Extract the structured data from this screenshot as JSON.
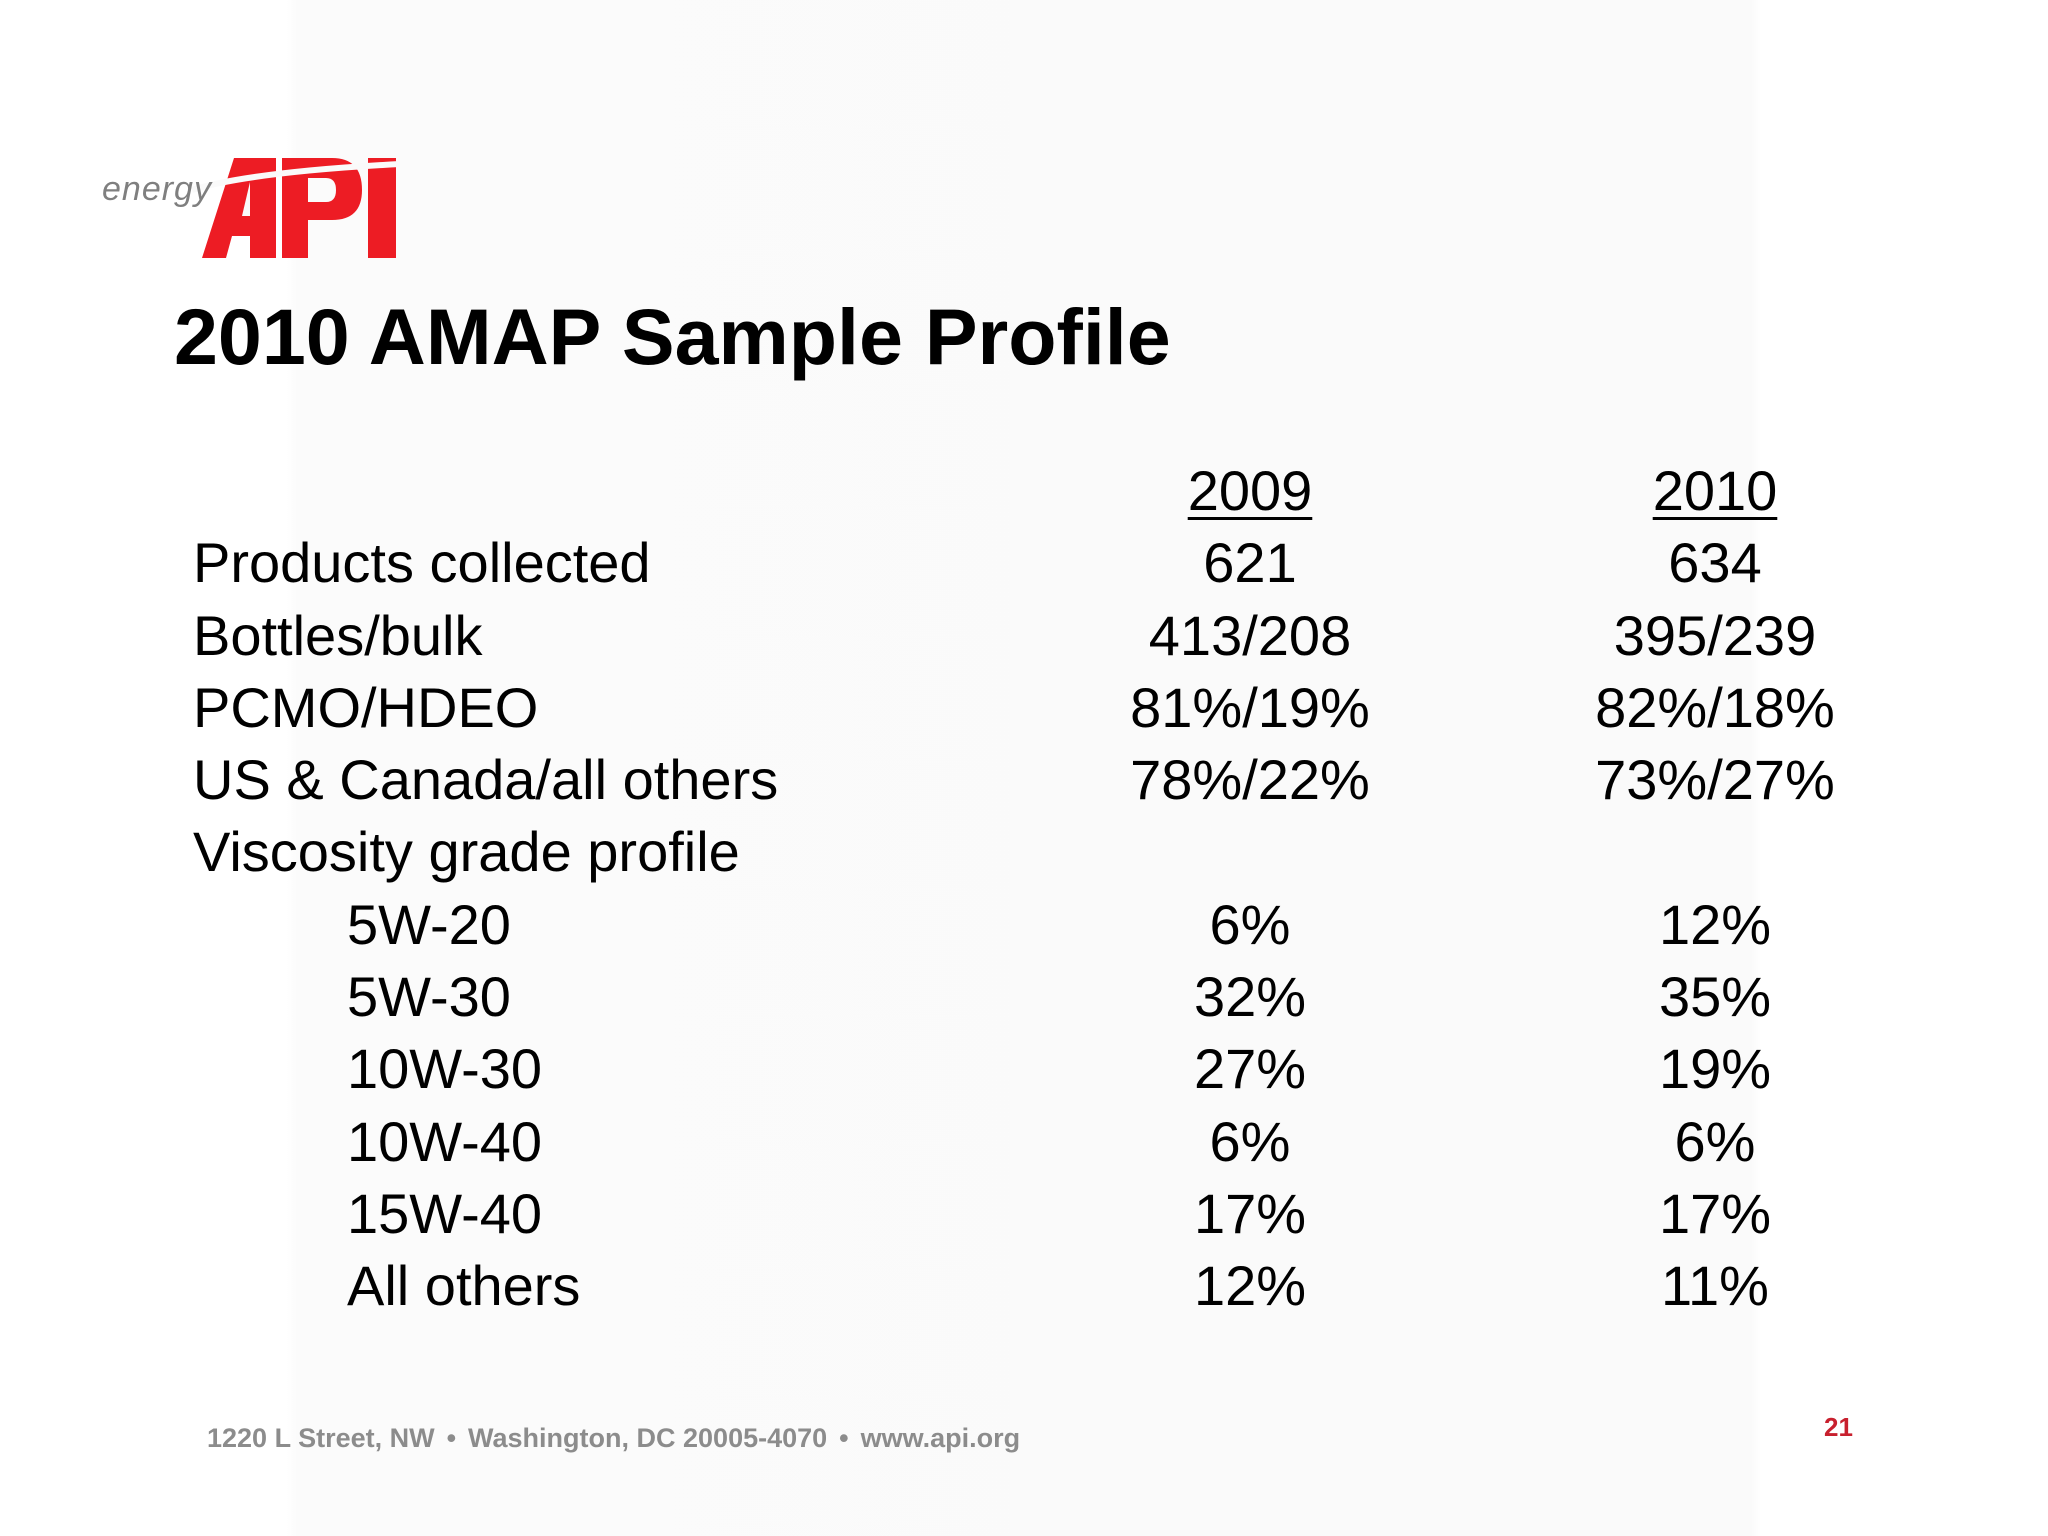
{
  "logo": {
    "word": "energy",
    "brand": "API",
    "brand_color": "#ed1c24",
    "word_color": "#7f7f7f"
  },
  "title": "2010 AMAP Sample Profile",
  "table": {
    "headers": [
      "2009",
      "2010"
    ],
    "rows": [
      {
        "label": "Products collected",
        "indent": false,
        "y2009": "621",
        "y2010": "634"
      },
      {
        "label": "Bottles/bulk",
        "indent": false,
        "y2009": "413/208",
        "y2010": "395/239"
      },
      {
        "label": "PCMO/HDEO",
        "indent": false,
        "y2009": "81%/19%",
        "y2010": "82%/18%"
      },
      {
        "label": "US & Canada/all others",
        "indent": false,
        "y2009": "78%/22%",
        "y2010": "73%/27%"
      },
      {
        "label": "Viscosity grade profile",
        "indent": false,
        "y2009": "",
        "y2010": ""
      },
      {
        "label": "5W-20",
        "indent": true,
        "y2009": "6%",
        "y2010": "12%"
      },
      {
        "label": "5W-30",
        "indent": true,
        "y2009": "32%",
        "y2010": "35%"
      },
      {
        "label": "10W-30",
        "indent": true,
        "y2009": "27%",
        "y2010": "19%"
      },
      {
        "label": "10W-40",
        "indent": true,
        "y2009": "6%",
        "y2010": "6%"
      },
      {
        "label": "15W-40",
        "indent": true,
        "y2009": "17%",
        "y2010": "17%"
      },
      {
        "label": "All others",
        "indent": true,
        "y2009": "12%",
        "y2010": "11%"
      }
    ]
  },
  "footer": {
    "address": "1220 L Street, NW",
    "city": "Washington, DC 20005-4070",
    "website": "www.api.org",
    "separator": "•"
  },
  "page_number": "21"
}
